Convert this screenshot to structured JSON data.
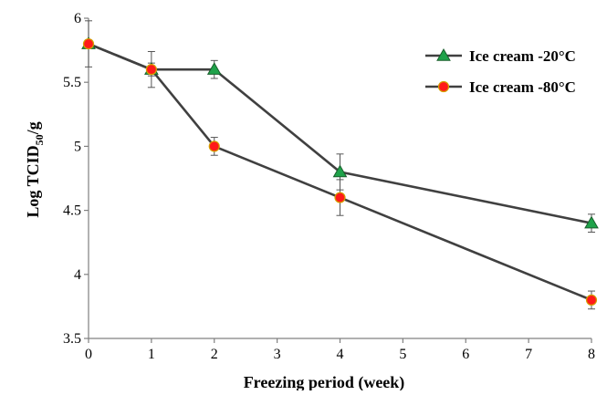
{
  "chart_data": {
    "type": "line",
    "xlabel": "Freezing period (week)",
    "ylabel": {
      "main": "Log TCID",
      "sub": "50",
      "suffix": "/g"
    },
    "xlim": [
      0,
      8
    ],
    "ylim": [
      3.5,
      6
    ],
    "xticks": [
      0,
      1,
      2,
      3,
      4,
      5,
      6,
      7,
      8
    ],
    "yticks": [
      3.5,
      4,
      4.5,
      5,
      5.5,
      6
    ],
    "ytick_labels": [
      "3.5",
      "4",
      "4.5",
      "5",
      "5.5",
      "6"
    ],
    "grid": false,
    "legend_position": "top-right",
    "series": [
      {
        "name": "Ice cream -20°C",
        "marker": "triangle",
        "marker_color": "#1fa24a",
        "line_color": "#404040",
        "x": [
          0,
          1,
          2,
          4,
          8
        ],
        "y": [
          5.8,
          5.6,
          5.6,
          4.8,
          4.4
        ],
        "err": [
          0.18,
          0.14,
          0.07,
          0.14,
          0.07
        ]
      },
      {
        "name": "Ice cream -80°C",
        "marker": "circle",
        "marker_color": "#ff1a1a",
        "line_color": "#404040",
        "x": [
          0,
          1,
          2,
          4,
          8
        ],
        "y": [
          5.8,
          5.6,
          5.0,
          4.6,
          3.8
        ],
        "err": [
          0.03,
          0.05,
          0.07,
          0.14,
          0.07
        ]
      }
    ]
  }
}
